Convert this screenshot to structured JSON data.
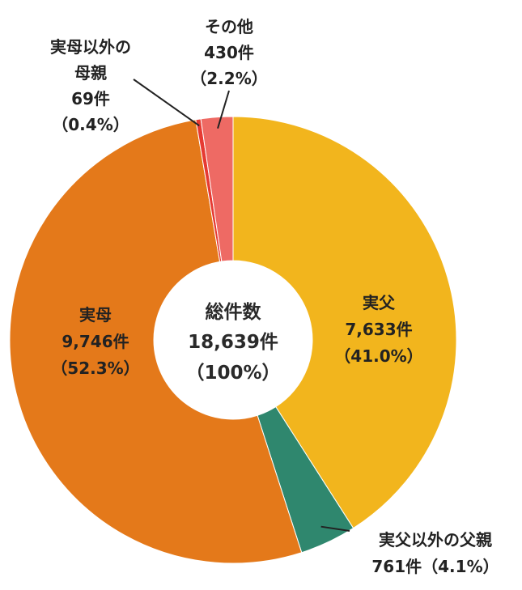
{
  "chart_data": {
    "type": "pie",
    "variant": "donut",
    "total": {
      "title": "総件数",
      "value_text": "18,639件",
      "percent_text": "（100%）"
    },
    "slices": [
      {
        "name": "実父",
        "count": 7633,
        "percent": 41.0,
        "color": "#F2B51D",
        "label_lines": [
          "実父",
          "7,633件",
          "（41.0%）"
        ]
      },
      {
        "name": "実父以外の父親",
        "count": 761,
        "percent": 4.1,
        "color": "#2F876E",
        "label_lines": [
          "実父以外の父親",
          "761件（4.1%）"
        ]
      },
      {
        "name": "実母",
        "count": 9746,
        "percent": 52.3,
        "color": "#E4791A",
        "label_lines": [
          "実母",
          "9,746件",
          "（52.3%）"
        ]
      },
      {
        "name": "実母以外の母親",
        "count": 69,
        "percent": 0.4,
        "color": "#E63A32",
        "label_lines": [
          "実母以外の",
          "母親",
          "69件",
          "（0.4%）"
        ]
      },
      {
        "name": "その他",
        "count": 430,
        "percent": 2.2,
        "color": "#EE6A64",
        "label_lines": [
          "その他",
          "430件",
          "（2.2%）"
        ]
      }
    ],
    "legend": "none"
  }
}
